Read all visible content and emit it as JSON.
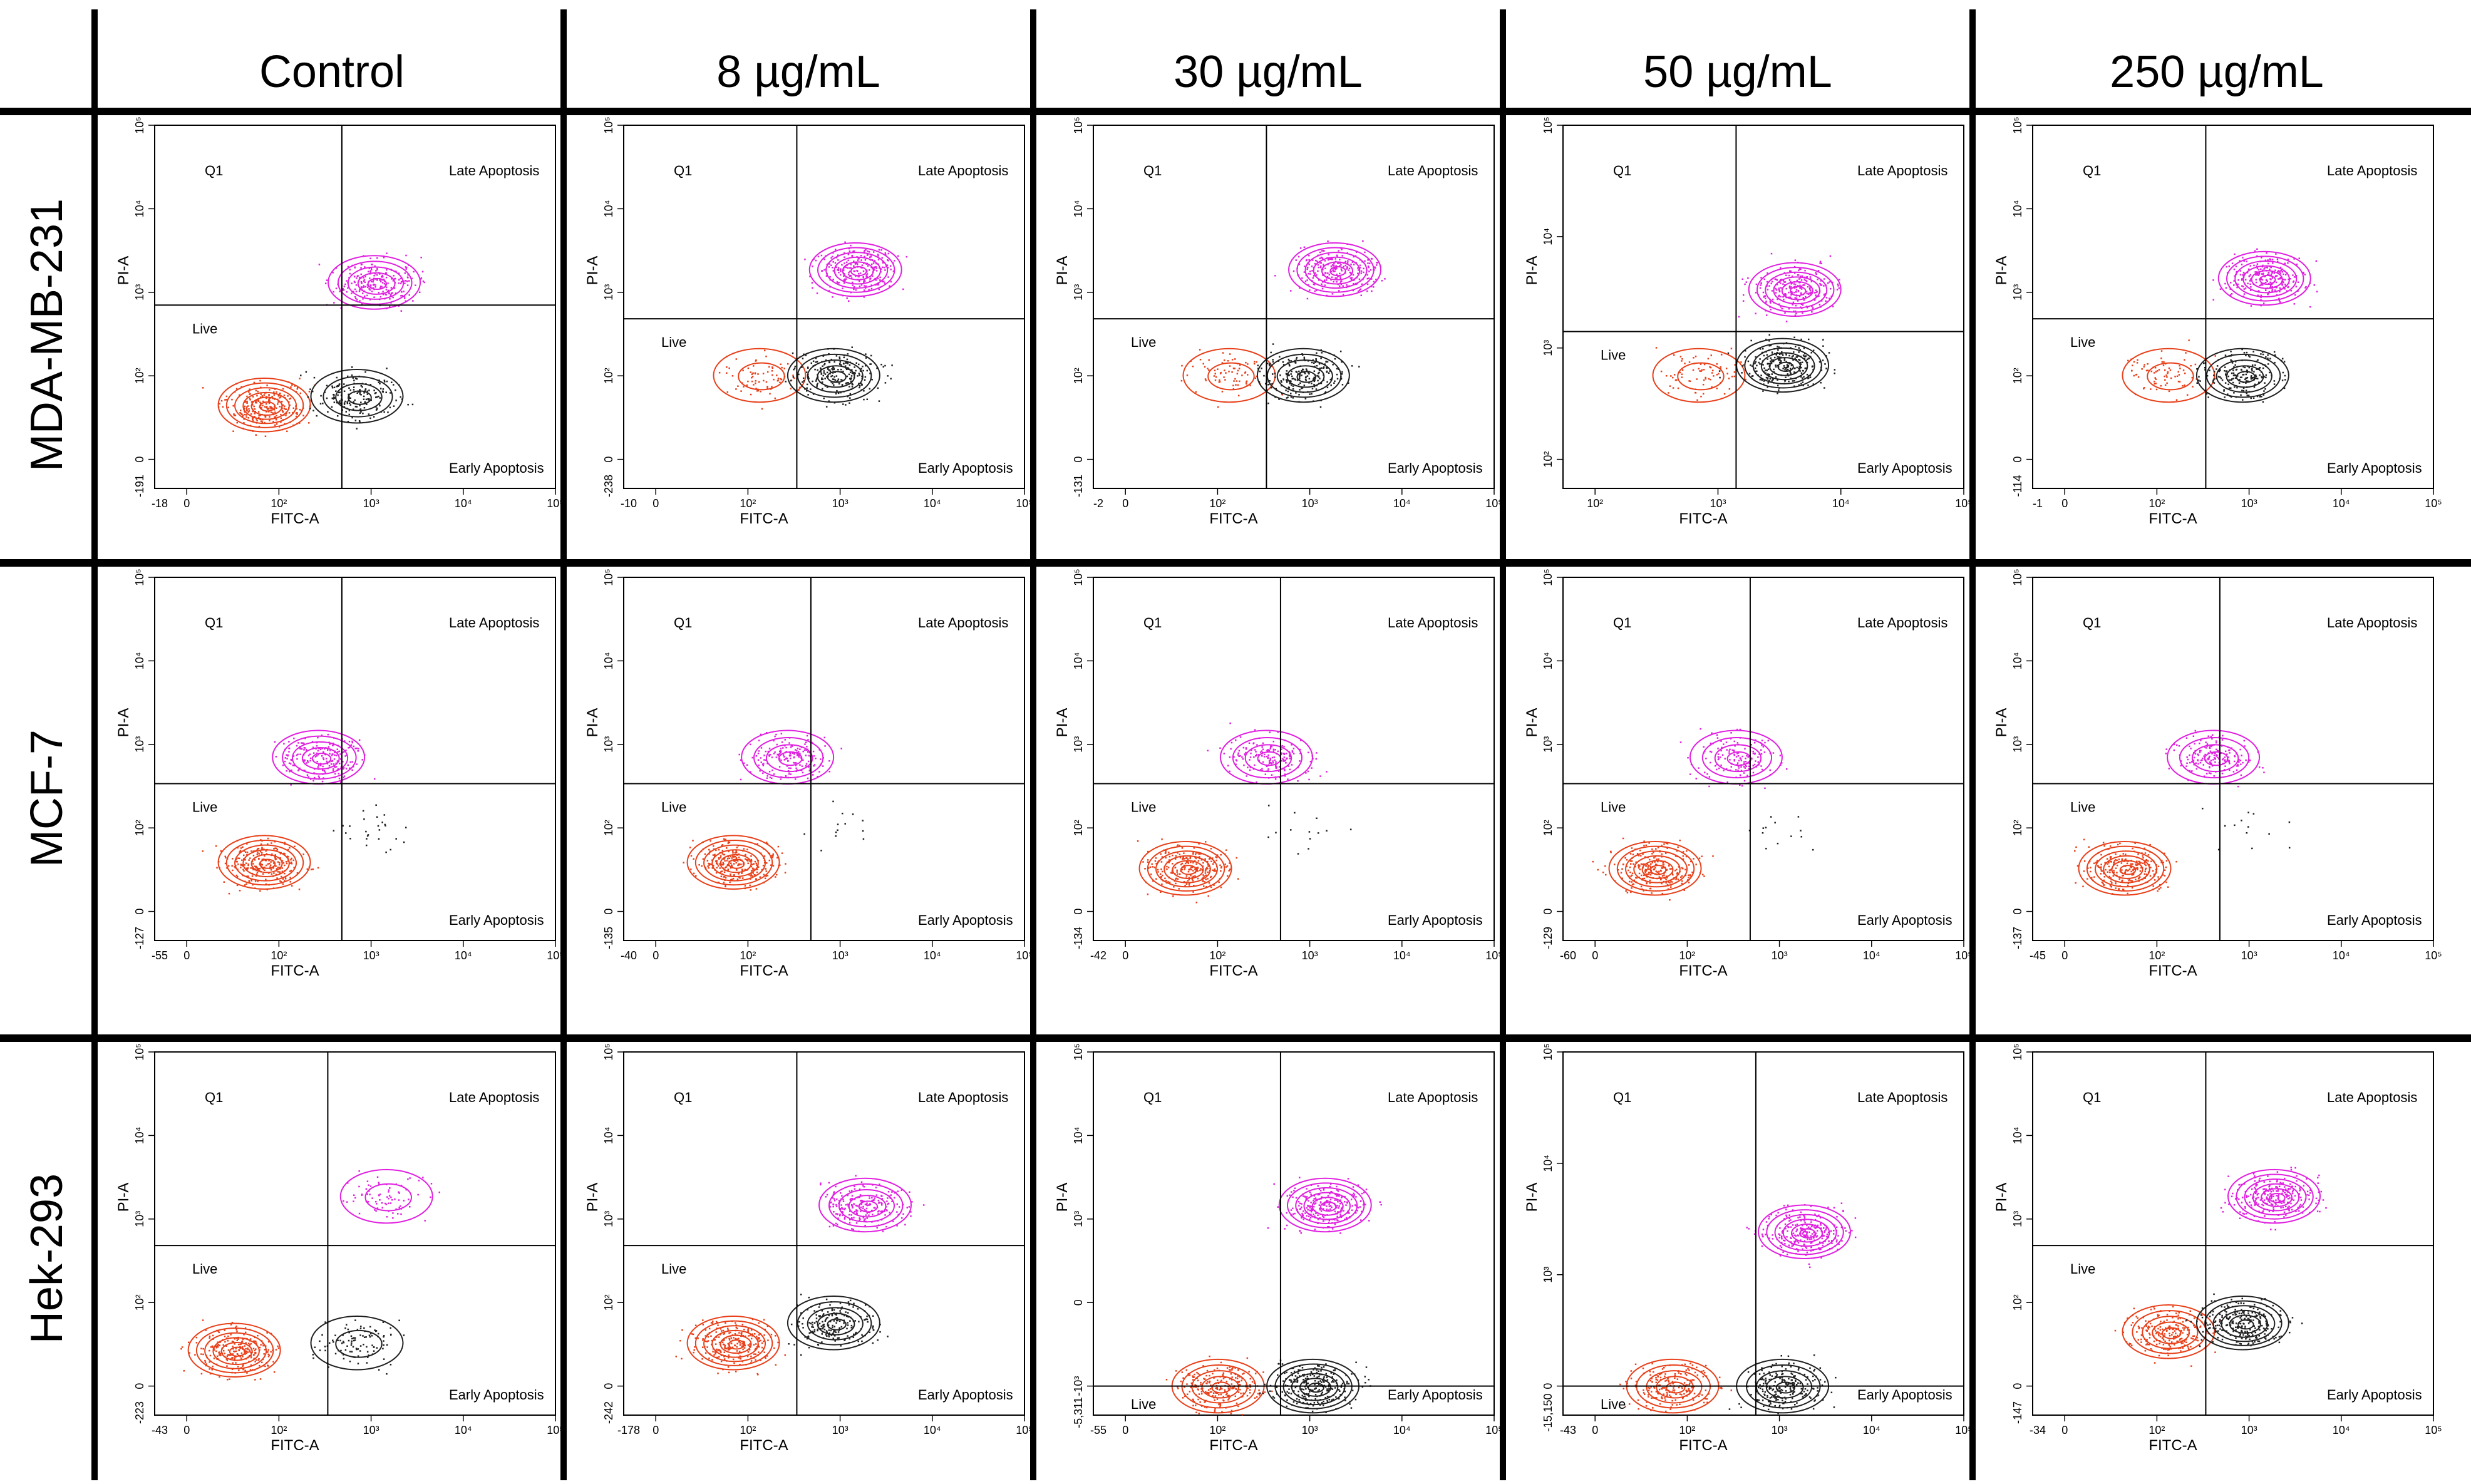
{
  "columns": [
    "Control",
    "8 µg/mL",
    "30 µg/mL",
    "50 µg/mL",
    "250 µg/mL"
  ],
  "rows": [
    "MDA-MB-231",
    "MCF-7",
    "Hek-293"
  ],
  "colors": {
    "live": "#e8401a",
    "apoptotic_pi": "#e020e0",
    "early": "#202020",
    "gate": "#000000"
  },
  "chart_data": [
    {
      "type": "scatter",
      "row": "MDA-MB-231",
      "column": "Control",
      "xlabel": "FITC-A",
      "ylabel": "PI-A",
      "x_min_label": "-18",
      "y_min_label": "-191",
      "quadrants": {
        "q1": "Q1",
        "q2": "Late Apoptosis",
        "q3": "Early Apoptosis",
        "q4": "Live"
      },
      "x_ticks": [
        "0",
        "10²",
        "10³",
        "10⁴",
        "10⁵"
      ],
      "y_ticks": [
        "0",
        "10²",
        "10³",
        "10⁴",
        "10⁵"
      ],
      "gate": {
        "x": 700,
        "y": 1000
      },
      "populations": [
        {
          "name": "Live",
          "cx": 100,
          "cy": 60,
          "density": 1.0
        },
        {
          "name": "Late Apoptosis",
          "cx": 1500,
          "cy": 1800,
          "density": 0.9
        },
        {
          "name": "Early Apoptosis",
          "cx": 1000,
          "cy": 80,
          "density": 0.7
        }
      ]
    },
    {
      "type": "scatter",
      "row": "MDA-MB-231",
      "column": "8 µg/mL",
      "xlabel": "FITC-A",
      "ylabel": "PI-A",
      "x_min_label": "-10",
      "y_min_label": "-238",
      "quadrants": {
        "q1": "Q1",
        "q2": "Late Apoptosis",
        "q3": "Early Apoptosis",
        "q4": "Live"
      },
      "x_ticks": [
        "0",
        "10²",
        "10³",
        "10⁴",
        "10⁵"
      ],
      "y_ticks": [
        "0",
        "10²",
        "10³",
        "10⁴",
        "10⁵"
      ],
      "gate": {
        "x": 500,
        "y": 700
      },
      "populations": [
        {
          "name": "Live",
          "cx": 200,
          "cy": 150,
          "density": 0.3
        },
        {
          "name": "Late Apoptosis",
          "cx": 2000,
          "cy": 2500,
          "density": 1.0
        },
        {
          "name": "Early Apoptosis",
          "cx": 1200,
          "cy": 150,
          "density": 0.9
        }
      ]
    },
    {
      "type": "scatter",
      "row": "MDA-MB-231",
      "column": "30 µg/mL",
      "xlabel": "FITC-A",
      "ylabel": "PI-A",
      "x_min_label": "-2",
      "y_min_label": "-131",
      "quadrants": {
        "q1": "Q1",
        "q2": "Late Apoptosis",
        "q3": "Early Apoptosis",
        "q4": "Live"
      },
      "x_ticks": [
        "0",
        "10²",
        "10³",
        "10⁴",
        "10⁵"
      ],
      "y_ticks": [
        "0",
        "10²",
        "10³",
        "10⁴",
        "10⁵"
      ],
      "gate": {
        "x": 500,
        "y": 700
      },
      "populations": [
        {
          "name": "Live",
          "cx": 200,
          "cy": 150,
          "density": 0.3
        },
        {
          "name": "Late Apoptosis",
          "cx": 2500,
          "cy": 2500,
          "density": 1.0
        },
        {
          "name": "Early Apoptosis",
          "cx": 1200,
          "cy": 150,
          "density": 0.9
        }
      ]
    },
    {
      "type": "scatter",
      "row": "MDA-MB-231",
      "column": "50 µg/mL",
      "xlabel": "FITC-A",
      "ylabel": "PI-A",
      "x_min_label": "",
      "y_min_label": "",
      "quadrants": {
        "q1": "Q1",
        "q2": "Late Apoptosis",
        "q3": "Early Apoptosis",
        "q4": "Live"
      },
      "x_ticks": [
        "10²",
        "10³",
        "10⁴",
        "10⁵"
      ],
      "y_ticks": [
        "10²",
        "10³",
        "10⁴",
        "10⁵"
      ],
      "gate": {
        "x": 500,
        "y": 500
      },
      "populations": [
        {
          "name": "Live",
          "cx": 200,
          "cy": 150,
          "density": 0.3
        },
        {
          "name": "Late Apoptosis",
          "cx": 2000,
          "cy": 1500,
          "density": 1.0
        },
        {
          "name": "Early Apoptosis",
          "cx": 1500,
          "cy": 200,
          "density": 1.0
        }
      ]
    },
    {
      "type": "scatter",
      "row": "MDA-MB-231",
      "column": "250 µg/mL",
      "xlabel": "FITC-A",
      "ylabel": "PI-A",
      "x_min_label": "-1",
      "y_min_label": "-114",
      "quadrants": {
        "q1": "Q1",
        "q2": "Late Apoptosis",
        "q3": "Early Apoptosis",
        "q4": "Live"
      },
      "x_ticks": [
        "0",
        "10²",
        "10³",
        "10⁴",
        "10⁵"
      ],
      "y_ticks": [
        "0",
        "10²",
        "10³",
        "10⁴",
        "10⁵"
      ],
      "gate": {
        "x": 500,
        "y": 700
      },
      "populations": [
        {
          "name": "Live",
          "cx": 200,
          "cy": 150,
          "density": 0.3
        },
        {
          "name": "Late Apoptosis",
          "cx": 2000,
          "cy": 2000,
          "density": 1.0
        },
        {
          "name": "Early Apoptosis",
          "cx": 1200,
          "cy": 150,
          "density": 0.8
        }
      ]
    },
    {
      "type": "scatter",
      "row": "MCF-7",
      "column": "Control",
      "xlabel": "FITC-A",
      "ylabel": "PI-A",
      "x_min_label": "-55",
      "y_min_label": "-127",
      "quadrants": {
        "q1": "Q1",
        "q2": "Late Apoptosis",
        "q3": "Early Apoptosis",
        "q4": "Live"
      },
      "x_ticks": [
        "0",
        "10²",
        "10³",
        "10⁴",
        "10⁵"
      ],
      "y_ticks": [
        "0",
        "10²",
        "10³",
        "10⁴",
        "10⁵"
      ],
      "gate": {
        "x": 700,
        "y": 500
      },
      "populations": [
        {
          "name": "Live",
          "cx": 100,
          "cy": 50,
          "density": 1.0
        },
        {
          "name": "Late Apoptosis",
          "cx": 400,
          "cy": 1000,
          "density": 0.8
        },
        {
          "name": "Early Apoptosis",
          "cx": 1500,
          "cy": 150,
          "density": 0.1
        }
      ]
    },
    {
      "type": "scatter",
      "row": "MCF-7",
      "column": "8 µg/mL",
      "xlabel": "FITC-A",
      "ylabel": "PI-A",
      "x_min_label": "-40",
      "y_min_label": "-135",
      "quadrants": {
        "q1": "Q1",
        "q2": "Late Apoptosis",
        "q3": "Early Apoptosis",
        "q4": "Live"
      },
      "x_ticks": [
        "0",
        "10²",
        "10³",
        "10⁴",
        "10⁵"
      ],
      "y_ticks": [
        "0",
        "10²",
        "10³",
        "10⁴",
        "10⁵"
      ],
      "gate": {
        "x": 700,
        "y": 500
      },
      "populations": [
        {
          "name": "Live",
          "cx": 100,
          "cy": 50,
          "density": 1.0
        },
        {
          "name": "Late Apoptosis",
          "cx": 400,
          "cy": 1000,
          "density": 0.7
        },
        {
          "name": "Early Apoptosis",
          "cx": 1500,
          "cy": 150,
          "density": 0.05
        }
      ]
    },
    {
      "type": "scatter",
      "row": "MCF-7",
      "column": "30 µg/mL",
      "xlabel": "FITC-A",
      "ylabel": "PI-A",
      "x_min_label": "-42",
      "y_min_label": "-134",
      "quadrants": {
        "q1": "Q1",
        "q2": "Late Apoptosis",
        "q3": "Early Apoptosis",
        "q4": "Live"
      },
      "x_ticks": [
        "0",
        "10²",
        "10³",
        "10⁴",
        "10⁵"
      ],
      "y_ticks": [
        "0",
        "10²",
        "10³",
        "10⁴",
        "10⁵"
      ],
      "gate": {
        "x": 700,
        "y": 500
      },
      "populations": [
        {
          "name": "Live",
          "cx": 60,
          "cy": 40,
          "density": 1.0
        },
        {
          "name": "Late Apoptosis",
          "cx": 500,
          "cy": 1000,
          "density": 0.7
        },
        {
          "name": "Early Apoptosis",
          "cx": 1500,
          "cy": 150,
          "density": 0.05
        }
      ]
    },
    {
      "type": "scatter",
      "row": "MCF-7",
      "column": "50 µg/mL",
      "xlabel": "FITC-A",
      "ylabel": "PI-A",
      "x_min_label": "-60",
      "y_min_label": "-129",
      "quadrants": {
        "q1": "Q1",
        "q2": "Late Apoptosis",
        "q3": "Early Apoptosis",
        "q4": "Live"
      },
      "x_ticks": [
        "0",
        "10²",
        "10³",
        "10⁴",
        "10⁵"
      ],
      "y_ticks": [
        "0",
        "10²",
        "10³",
        "10⁴",
        "10⁵"
      ],
      "gate": {
        "x": 700,
        "y": 500
      },
      "populations": [
        {
          "name": "Live",
          "cx": 60,
          "cy": 40,
          "density": 1.0
        },
        {
          "name": "Late Apoptosis",
          "cx": 500,
          "cy": 1000,
          "density": 0.6
        },
        {
          "name": "Early Apoptosis",
          "cx": 1500,
          "cy": 150,
          "density": 0.05
        }
      ]
    },
    {
      "type": "scatter",
      "row": "MCF-7",
      "column": "250 µg/mL",
      "xlabel": "FITC-A",
      "ylabel": "PI-A",
      "x_min_label": "-45",
      "y_min_label": "-137",
      "quadrants": {
        "q1": "Q1",
        "q2": "Late Apoptosis",
        "q3": "Early Apoptosis",
        "q4": "Live"
      },
      "x_ticks": [
        "0",
        "10²",
        "10³",
        "10⁴",
        "10⁵"
      ],
      "y_ticks": [
        "0",
        "10²",
        "10³",
        "10⁴",
        "10⁵"
      ],
      "gate": {
        "x": 700,
        "y": 500
      },
      "populations": [
        {
          "name": "Live",
          "cx": 60,
          "cy": 40,
          "density": 1.0
        },
        {
          "name": "Late Apoptosis",
          "cx": 600,
          "cy": 1000,
          "density": 0.7
        },
        {
          "name": "Early Apoptosis",
          "cx": 1500,
          "cy": 150,
          "density": 0.05
        }
      ]
    },
    {
      "type": "scatter",
      "row": "Hek-293",
      "column": "Control",
      "xlabel": "FITC-A",
      "ylabel": "PI-A",
      "x_min_label": "-43",
      "y_min_label": "-223",
      "quadrants": {
        "q1": "Q1",
        "q2": "Late Apoptosis",
        "q3": "Early Apoptosis",
        "q4": "Live"
      },
      "x_ticks": [
        "0",
        "10²",
        "10³",
        "10⁴",
        "10⁵"
      ],
      "y_ticks": [
        "0",
        "10²",
        "10³",
        "10⁴",
        "10⁵"
      ],
      "gate": {
        "x": 500,
        "y": 700
      },
      "populations": [
        {
          "name": "Live",
          "cx": 40,
          "cy": 30,
          "density": 1.0
        },
        {
          "name": "Late Apoptosis",
          "cx": 2000,
          "cy": 2500,
          "density": 0.3
        },
        {
          "name": "Early Apoptosis",
          "cx": 1000,
          "cy": 40,
          "density": 0.4
        }
      ]
    },
    {
      "type": "scatter",
      "row": "Hek-293",
      "column": "8 µg/mL",
      "xlabel": "FITC-A",
      "ylabel": "PI-A",
      "x_min_label": "-178",
      "y_min_label": "-242",
      "quadrants": {
        "q1": "Q1",
        "q2": "Late Apoptosis",
        "q3": "Early Apoptosis",
        "q4": "Live"
      },
      "x_ticks": [
        "0",
        "10²",
        "10³",
        "10⁴",
        "10⁵"
      ],
      "y_ticks": [
        "0",
        "10²",
        "10³",
        "10⁴",
        "10⁵"
      ],
      "gate": {
        "x": 500,
        "y": 700
      },
      "populations": [
        {
          "name": "Live",
          "cx": 100,
          "cy": 40,
          "density": 1.0
        },
        {
          "name": "Late Apoptosis",
          "cx": 2500,
          "cy": 2000,
          "density": 0.9
        },
        {
          "name": "Early Apoptosis",
          "cx": 1200,
          "cy": 80,
          "density": 0.8
        }
      ]
    },
    {
      "type": "scatter",
      "row": "Hek-293",
      "column": "30 µg/mL",
      "xlabel": "FITC-A",
      "ylabel": "PI-A",
      "x_min_label": "-55",
      "y_min_label": "-5,311",
      "quadrants": {
        "q1": "Q1",
        "q2": "Late Apoptosis",
        "q3": "Early Apoptosis",
        "q4": "Live"
      },
      "x_ticks": [
        "0",
        "10²",
        "10³",
        "10⁴",
        "10⁵"
      ],
      "y_ticks": [
        "-10³",
        "0",
        "10³",
        "10⁴",
        "10⁵"
      ],
      "gate": {
        "x": 700,
        "y": 0
      },
      "populations": [
        {
          "name": "Live",
          "cx": 150,
          "cy": 0,
          "density": 0.9
        },
        {
          "name": "Late Apoptosis",
          "cx": 2000,
          "cy": 2000,
          "density": 1.0
        },
        {
          "name": "Early Apoptosis",
          "cx": 1500,
          "cy": 0,
          "density": 1.0
        }
      ]
    },
    {
      "type": "scatter",
      "row": "Hek-293",
      "column": "50 µg/mL",
      "xlabel": "FITC-A",
      "ylabel": "PI-A",
      "x_min_label": "-43",
      "y_min_label": "-15,150",
      "quadrants": {
        "q1": "Q1",
        "q2": "Late Apoptosis",
        "q3": "Early Apoptosis",
        "q4": "Live"
      },
      "x_ticks": [
        "0",
        "10²",
        "10³",
        "10⁴",
        "10⁵"
      ],
      "y_ticks": [
        "0",
        "10³",
        "10⁴",
        "10⁵"
      ],
      "gate": {
        "x": 800,
        "y": 0
      },
      "populations": [
        {
          "name": "Live",
          "cx": 100,
          "cy": 0,
          "density": 0.8
        },
        {
          "name": "Late Apoptosis",
          "cx": 2500,
          "cy": 1000,
          "density": 1.0
        },
        {
          "name": "Early Apoptosis",
          "cx": 1500,
          "cy": 0,
          "density": 0.9
        }
      ]
    },
    {
      "type": "scatter",
      "row": "Hek-293",
      "column": "250 µg/mL",
      "xlabel": "FITC-A",
      "ylabel": "PI-A",
      "x_min_label": "-34",
      "y_min_label": "-147",
      "quadrants": {
        "q1": "Q1",
        "q2": "Late Apoptosis",
        "q3": "Early Apoptosis",
        "q4": "Live"
      },
      "x_ticks": [
        "0",
        "10²",
        "10³",
        "10⁴",
        "10⁵"
      ],
      "y_ticks": [
        "0",
        "10²",
        "10³",
        "10⁴",
        "10⁵"
      ],
      "gate": {
        "x": 500,
        "y": 700
      },
      "populations": [
        {
          "name": "Live",
          "cx": 200,
          "cy": 60,
          "density": 0.9
        },
        {
          "name": "Late Apoptosis",
          "cx": 2500,
          "cy": 2500,
          "density": 1.0
        },
        {
          "name": "Early Apoptosis",
          "cx": 1200,
          "cy": 80,
          "density": 1.0
        }
      ]
    }
  ]
}
